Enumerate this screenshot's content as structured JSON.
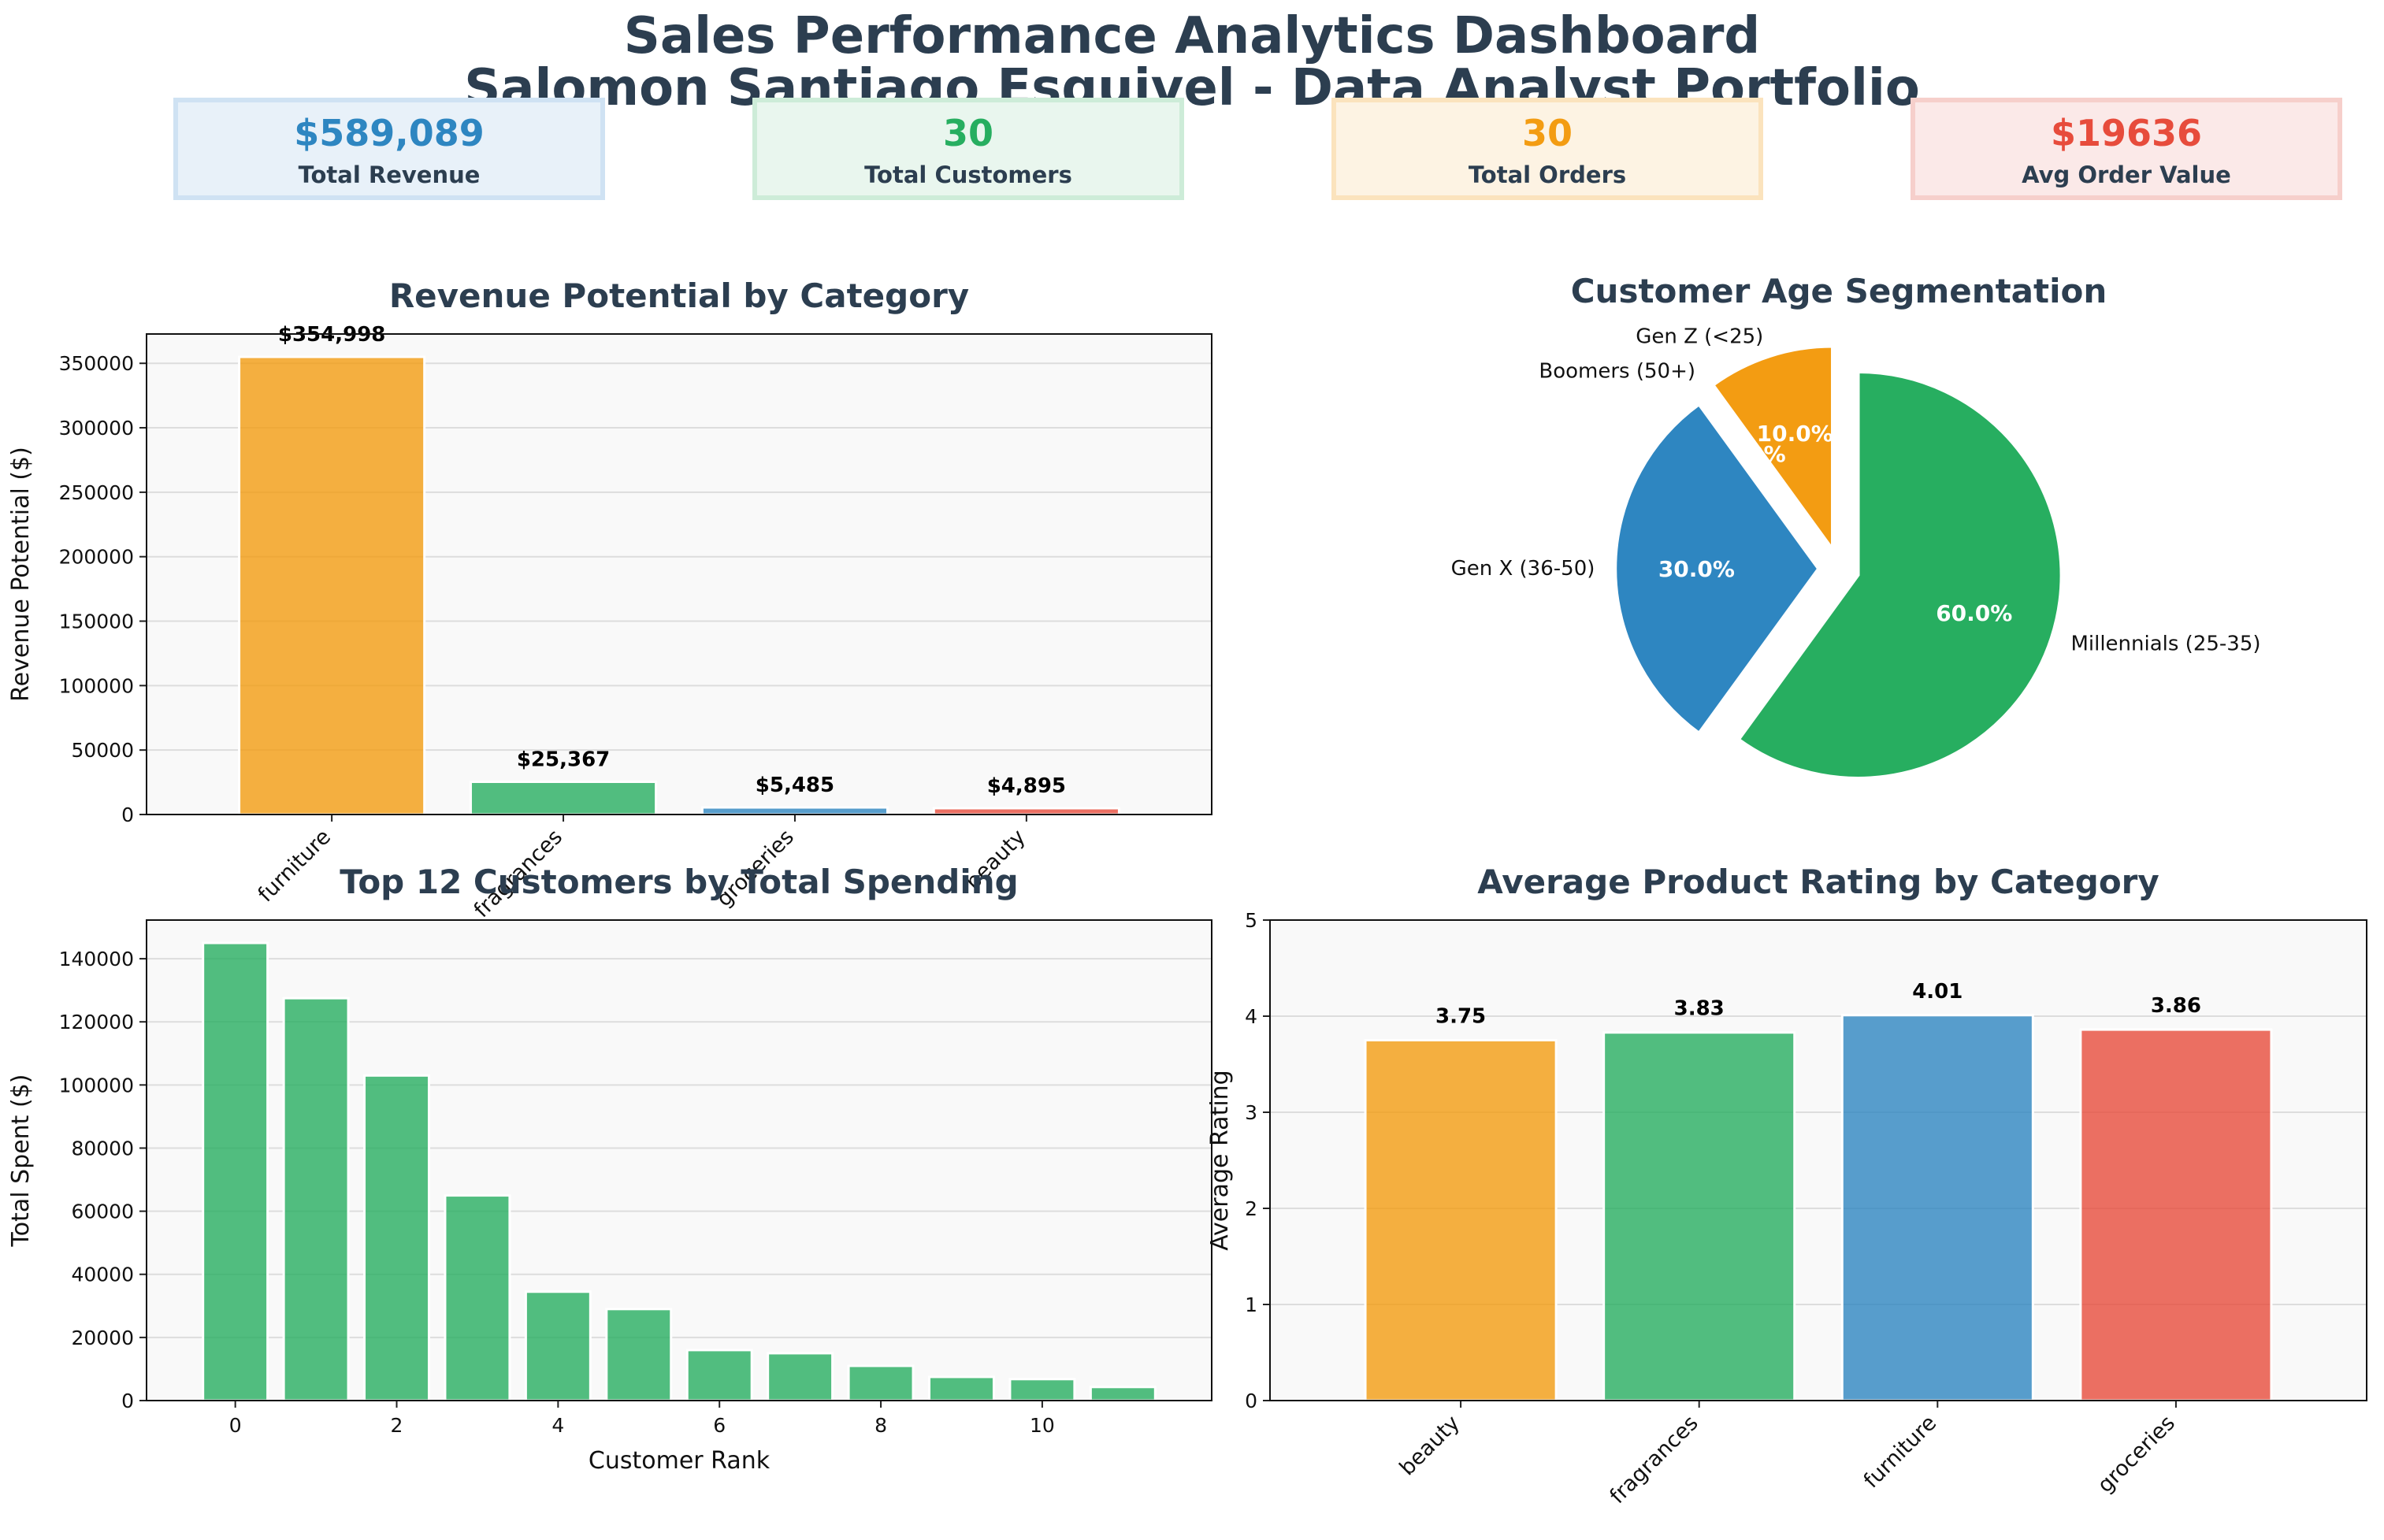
{
  "header": {
    "title_line1": "Sales Performance Analytics Dashboard",
    "title_line2": "Salomon Santiago Esquivel - Data Analyst Portfolio"
  },
  "kpis": [
    {
      "value": "$589,089",
      "label": "Total Revenue",
      "color": "#2e86c1",
      "bg": "#e8f1f9",
      "border": "#cfe2f3"
    },
    {
      "value": "30",
      "label": "Total Customers",
      "color": "#27ae60",
      "bg": "#e9f6ee",
      "border": "#cdecd8"
    },
    {
      "value": "30",
      "label": "Total Orders",
      "color": "#f39c12",
      "bg": "#fdf3e3",
      "border": "#fbe3bd"
    },
    {
      "value": "$19636",
      "label": "Avg Order Value",
      "color": "#e74c3c",
      "bg": "#fbe9e8",
      "border": "#f6cfcb"
    }
  ],
  "chart_data": [
    {
      "type": "bar",
      "title": "Revenue Potential by Category",
      "ylabel": "Revenue Potential ($)",
      "xlabel": "",
      "categories": [
        "furniture",
        "fragrances",
        "groceries",
        "beauty"
      ],
      "values": [
        354998,
        25367,
        5485,
        4895
      ],
      "data_labels": [
        "$354,998",
        "$25,367",
        "$5,485",
        "$4,895"
      ],
      "colors": [
        "#f39c12",
        "#27ae60",
        "#2e86c1",
        "#e74c3c"
      ],
      "ylim": [
        0,
        372748
      ],
      "yticks": [
        0,
        50000,
        100000,
        150000,
        200000,
        250000,
        300000,
        350000
      ],
      "grid": "y"
    },
    {
      "type": "pie",
      "title": "Customer Age Segmentation",
      "labels": [
        "Gen Z (<25)",
        "Boomers (50+)",
        "Gen X (36-50)",
        "Millennials (25-35)"
      ],
      "values": [
        10.0,
        0.0,
        30.0,
        60.0
      ],
      "pct_labels": [
        "10.0%",
        "0.0%",
        "30.0%",
        "60.0%"
      ],
      "colors": [
        "#f39c12",
        "#e74c3c",
        "#2e86c1",
        "#27ae60"
      ],
      "exploded": true
    },
    {
      "type": "bar",
      "title": "Top 12 Customers by Total Spending",
      "xlabel": "Customer Rank",
      "ylabel": "Total Spent ($)",
      "x": [
        0,
        1,
        2,
        3,
        4,
        5,
        6,
        7,
        8,
        9,
        10,
        11
      ],
      "values": [
        145000,
        127500,
        103000,
        65000,
        34500,
        29000,
        16000,
        15000,
        11000,
        7500,
        6800,
        4300
      ],
      "color": "#27ae60",
      "ylim": [
        0,
        152250
      ],
      "yticks": [
        0,
        20000,
        40000,
        60000,
        80000,
        100000,
        120000,
        140000
      ],
      "xticks": [
        0,
        2,
        4,
        6,
        8,
        10
      ],
      "grid": "y"
    },
    {
      "type": "bar",
      "title": "Average Product Rating by Category",
      "ylabel": "Average Rating",
      "xlabel": "",
      "categories": [
        "beauty",
        "fragrances",
        "furniture",
        "groceries"
      ],
      "values": [
        3.75,
        3.83,
        4.01,
        3.86
      ],
      "data_labels": [
        "3.75",
        "3.83",
        "4.01",
        "3.86"
      ],
      "colors": [
        "#f39c12",
        "#27ae60",
        "#2e86c1",
        "#e74c3c"
      ],
      "ylim": [
        0,
        5
      ],
      "yticks": [
        0,
        1,
        2,
        3,
        4,
        5
      ],
      "grid": "y"
    }
  ]
}
